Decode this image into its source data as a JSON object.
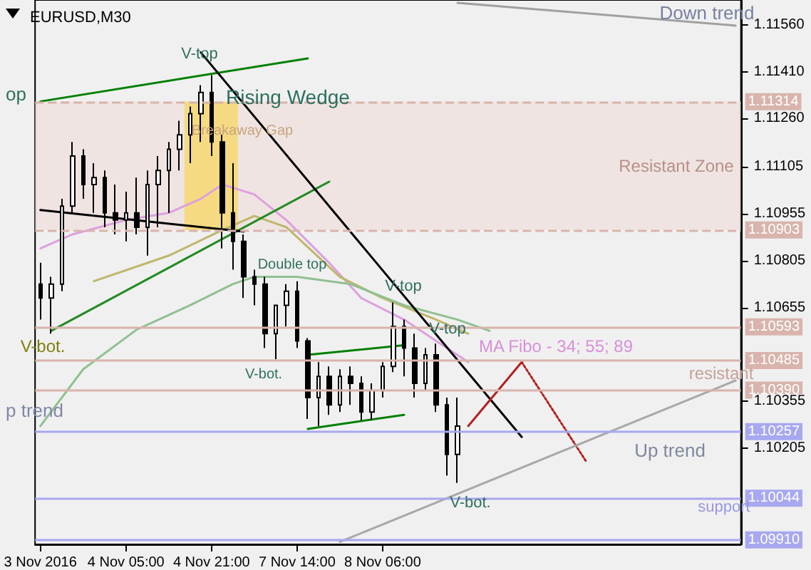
{
  "chart_data": {
    "type": "candlestick",
    "title": "EURUSD,M30",
    "categories": [
      "3 Nov 2016",
      null,
      null,
      null,
      null,
      null,
      null,
      null,
      "4 Nov 05:00",
      null,
      null,
      null,
      null,
      null,
      null,
      null,
      "4 Nov 21:00",
      null,
      null,
      null,
      null,
      null,
      null,
      null,
      "7 Nov 14:00",
      null,
      null,
      null,
      null,
      null,
      null,
      null,
      "8 Nov 06:00",
      null,
      null,
      null,
      null,
      null,
      null,
      null,
      null,
      null,
      null,
      null,
      null,
      null,
      null,
      null,
      null,
      null,
      null,
      null,
      null,
      null,
      null,
      null,
      null,
      null,
      null,
      null,
      null,
      null,
      null,
      null,
      null,
      null
    ],
    "ohlc": [
      [
        1.1073,
        1.10798,
        1.10616,
        1.10685
      ],
      [
        1.10685,
        1.10753,
        1.10571,
        1.1073
      ],
      [
        1.1073,
        1.11003,
        1.10707,
        1.1098
      ],
      [
        1.1098,
        1.11185,
        1.10958,
        1.1114
      ],
      [
        1.1114,
        1.11162,
        1.11003,
        1.11049
      ],
      [
        1.11049,
        1.11117,
        1.10958,
        1.11071
      ],
      [
        1.11071,
        1.11094,
        1.10912,
        1.10958
      ],
      [
        1.10958,
        1.11049,
        1.10889,
        1.10935
      ],
      [
        1.10935,
        1.11026,
        1.10867,
        1.10958
      ],
      [
        1.10958,
        1.11071,
        1.10889,
        1.10912
      ],
      [
        1.10912,
        1.11094,
        1.10821,
        1.11049
      ],
      [
        1.11049,
        1.1114,
        1.10912,
        1.11094
      ],
      [
        1.11094,
        1.11185,
        1.10958,
        1.11162
      ],
      [
        1.11162,
        1.11253,
        1.11094,
        1.11208
      ],
      [
        1.11208,
        1.11299,
        1.11117,
        1.11276
      ],
      [
        1.11276,
        1.11367,
        1.11185,
        1.11344
      ],
      [
        1.11344,
        1.11399,
        1.1114,
        1.11185
      ],
      [
        1.11185,
        1.11208,
        1.10844,
        1.10958
      ],
      [
        1.10958,
        1.11117,
        1.10776,
        1.10867
      ],
      [
        1.10867,
        1.10889,
        1.10685,
        1.10753
      ],
      [
        1.10753,
        1.10776,
        1.10662,
        1.1073
      ],
      [
        1.1073,
        1.10753,
        1.10525,
        1.10571
      ],
      [
        1.10571,
        1.10662,
        1.10489,
        1.10662
      ],
      [
        1.10662,
        1.1073,
        1.10594,
        1.10707
      ],
      [
        1.10707,
        1.10739,
        1.10525,
        1.10548
      ],
      [
        1.10548,
        1.10557,
        1.10298,
        1.10366
      ],
      [
        1.10366,
        1.1048,
        1.10275,
        1.10434
      ],
      [
        1.10434,
        1.10466,
        1.10311,
        1.10343
      ],
      [
        1.10343,
        1.10457,
        1.1032,
        1.10434
      ],
      [
        1.10434,
        1.10466,
        1.10343,
        1.10412
      ],
      [
        1.10412,
        1.10434,
        1.10293,
        1.1032
      ],
      [
        1.1032,
        1.10412,
        1.10293,
        1.10389
      ],
      [
        1.10389,
        1.1048,
        1.10366,
        1.10466
      ],
      [
        1.10466,
        1.10671,
        1.10448,
        1.10594
      ],
      [
        1.10594,
        1.10616,
        1.10434,
        1.10525
      ],
      [
        1.10525,
        1.10571,
        1.10366,
        1.10412
      ],
      [
        1.10412,
        1.10525,
        1.10389,
        1.10503
      ],
      [
        1.10503,
        1.10539,
        1.1032,
        1.10343
      ],
      [
        1.10343,
        1.10366,
        1.10116,
        1.10184
      ],
      [
        1.10184,
        1.10366,
        1.10093,
        1.10275
      ],
      null,
      null,
      null,
      null,
      null,
      null,
      null,
      null,
      null,
      null,
      null,
      null,
      null,
      null,
      null,
      null,
      null,
      null,
      null,
      null,
      null,
      null,
      null,
      null,
      null,
      null
    ],
    "color": "#000000",
    "series": [
      {
        "type": "line",
        "color": "#dda0dd",
        "values": [
          1.10844,
          null,
          null,
          1.10889,
          null,
          null,
          null,
          null,
          1.10935,
          null,
          null,
          null,
          1.10958,
          null,
          null,
          1.11003,
          null,
          1.11049,
          null,
          null,
          1.11017,
          null,
          null,
          1.10935,
          null,
          null,
          null,
          1.10798,
          null,
          null,
          1.10685,
          null,
          null,
          null,
          1.10616,
          null,
          null,
          1.10548,
          null,
          null,
          1.1048,
          null,
          null,
          null,
          null,
          null,
          null,
          null,
          null,
          null,
          null,
          null,
          null,
          null,
          null,
          null,
          null,
          null,
          null,
          null,
          null,
          null,
          null,
          null,
          null,
          null
        ]
      },
      {
        "type": "line",
        "color": "#bdb76b",
        "values": [
          null,
          null,
          null,
          null,
          null,
          1.10739,
          null,
          null,
          null,
          null,
          null,
          null,
          1.10821,
          null,
          null,
          null,
          null,
          1.10903,
          null,
          null,
          1.10948,
          null,
          null,
          1.10912,
          null,
          null,
          null,
          null,
          1.10753,
          null,
          null,
          null,
          1.10685,
          null,
          null,
          null,
          null,
          1.10616,
          null,
          null,
          1.10571,
          null,
          null,
          null,
          null,
          null,
          null,
          null,
          null,
          null,
          null,
          null,
          null,
          null,
          null,
          null,
          null,
          null,
          null,
          null,
          null,
          null,
          null,
          null,
          null,
          null
        ]
      },
      {
        "type": "line",
        "color": "#90c090",
        "values": [
          1.10275,
          null,
          null,
          null,
          1.10457,
          null,
          null,
          null,
          null,
          1.10584,
          null,
          null,
          null,
          null,
          1.10662,
          null,
          null,
          null,
          1.1073,
          null,
          1.10753,
          null,
          null,
          null,
          1.10753,
          null,
          null,
          null,
          null,
          1.1073,
          null,
          null,
          null,
          null,
          1.10662,
          null,
          null,
          null,
          null,
          1.10616,
          null,
          null,
          1.1058,
          null,
          null,
          null,
          null,
          null,
          null,
          null,
          null,
          null,
          null,
          null,
          null,
          null,
          null,
          null,
          null,
          null,
          null,
          null,
          null,
          null,
          null,
          null
        ]
      },
      {
        "type": "line",
        "color": "#008000",
        "values": [
          1.11315,
          null,
          null,
          null,
          null,
          null,
          null,
          null,
          null,
          null,
          null,
          null,
          null,
          null,
          null,
          null,
          null,
          null,
          null,
          null,
          null,
          null,
          null,
          null,
          null,
          1.11453,
          null,
          null,
          null,
          null,
          null,
          null,
          null,
          null,
          null,
          null,
          null,
          null,
          null,
          null,
          null,
          null,
          null,
          null,
          null,
          null,
          null,
          null,
          null,
          null,
          null,
          null,
          null,
          null,
          null,
          null,
          null,
          null,
          null,
          null,
          null,
          null,
          null,
          null,
          null,
          null
        ]
      },
      {
        "type": "line",
        "color": "#228b22",
        "values": [
          null,
          1.1058,
          null,
          null,
          null,
          null,
          null,
          null,
          null,
          null,
          null,
          null,
          null,
          null,
          null,
          null,
          null,
          null,
          null,
          null,
          null,
          null,
          null,
          null,
          null,
          null,
          null,
          1.11058,
          null,
          null,
          null,
          null,
          null,
          null,
          null,
          null,
          null,
          null,
          null,
          null,
          null,
          null,
          null,
          null,
          null,
          null,
          null,
          null,
          null,
          null,
          null,
          null,
          null,
          null,
          null,
          null,
          null,
          null,
          null,
          null,
          null,
          null,
          null,
          null,
          null,
          null
        ]
      },
      {
        "type": "line",
        "color": "#008000",
        "values": [
          null,
          null,
          null,
          null,
          null,
          null,
          null,
          null,
          null,
          null,
          null,
          null,
          null,
          null,
          null,
          null,
          null,
          null,
          null,
          null,
          null,
          null,
          null,
          null,
          null,
          1.10503,
          null,
          null,
          null,
          null,
          null,
          null,
          null,
          null,
          1.10534,
          null,
          null,
          null,
          null,
          null,
          null,
          null,
          null,
          null,
          null,
          null,
          null,
          null,
          null,
          null,
          null,
          null,
          null,
          null,
          null,
          null,
          null,
          null,
          null,
          null,
          null,
          null,
          null,
          null,
          null,
          null
        ]
      },
      {
        "type": "line",
        "color": "#008000",
        "values": [
          null,
          null,
          null,
          null,
          null,
          null,
          null,
          null,
          null,
          null,
          null,
          null,
          null,
          null,
          null,
          null,
          null,
          null,
          null,
          null,
          null,
          null,
          null,
          null,
          null,
          1.10266,
          null,
          null,
          null,
          null,
          null,
          null,
          null,
          null,
          1.10311,
          null,
          null,
          null,
          null,
          null,
          null,
          null,
          null,
          null,
          null,
          null,
          null,
          null,
          null,
          null,
          null,
          null,
          null,
          null,
          null,
          null,
          null,
          null,
          null,
          null,
          null,
          null,
          null,
          null,
          null,
          null
        ]
      },
      {
        "type": "line",
        "color": "#000000",
        "values": [
          null,
          null,
          null,
          null,
          null,
          null,
          null,
          null,
          null,
          null,
          null,
          null,
          null,
          null,
          null,
          1.11472,
          null,
          null,
          null,
          null,
          null,
          null,
          null,
          null,
          null,
          null,
          null,
          null,
          null,
          null,
          null,
          null,
          null,
          null,
          null,
          null,
          null,
          null,
          null,
          null,
          null,
          null,
          null,
          null,
          null,
          1.1024,
          null,
          null,
          null,
          null,
          null,
          null,
          null,
          null,
          null,
          null,
          null,
          null,
          null,
          null,
          null,
          null,
          null,
          null,
          null,
          null
        ]
      },
      {
        "type": "line",
        "color": "#000000",
        "values": [
          1.10967,
          null,
          null,
          null,
          null,
          null,
          null,
          null,
          null,
          null,
          null,
          null,
          null,
          null,
          null,
          null,
          null,
          null,
          null,
          1.10898,
          null,
          null,
          null,
          null,
          null,
          null,
          null,
          null,
          null,
          null,
          null,
          null,
          null,
          null,
          null,
          null,
          null,
          null,
          null,
          null,
          null,
          null,
          null,
          null,
          null,
          null,
          null,
          null,
          null,
          null,
          null,
          null,
          null,
          null,
          null,
          null,
          null,
          null,
          null,
          null,
          null,
          null,
          null,
          null,
          null,
          null
        ]
      },
      {
        "type": "line",
        "color": "#b22222",
        "values": [
          null,
          null,
          null,
          null,
          null,
          null,
          null,
          null,
          null,
          null,
          null,
          null,
          null,
          null,
          null,
          null,
          null,
          null,
          null,
          null,
          null,
          null,
          null,
          null,
          null,
          null,
          null,
          null,
          null,
          null,
          null,
          null,
          null,
          null,
          null,
          null,
          null,
          null,
          null,
          null,
          1.10275,
          null,
          null,
          null,
          null,
          1.1048,
          null,
          null,
          null,
          null,
          null,
          null,
          null,
          null,
          null,
          null,
          null,
          null,
          null,
          null,
          null,
          null,
          null,
          null,
          null,
          null
        ]
      },
      {
        "type": "line",
        "color": "#b22222",
        "line_style": "dotted",
        "values": [
          null,
          null,
          null,
          null,
          null,
          null,
          null,
          null,
          null,
          null,
          null,
          null,
          null,
          null,
          null,
          null,
          null,
          null,
          null,
          null,
          null,
          null,
          null,
          null,
          null,
          null,
          null,
          null,
          null,
          null,
          null,
          null,
          null,
          null,
          null,
          null,
          null,
          null,
          null,
          null,
          null,
          null,
          null,
          null,
          null,
          1.1048,
          null,
          null,
          null,
          null,
          null,
          1.10163,
          null,
          null,
          null,
          null,
          null,
          null,
          null,
          null,
          null,
          null,
          null,
          null,
          null,
          null
        ]
      },
      {
        "type": "line",
        "color": "#a0a0a0",
        "values": [
          null,
          null,
          null,
          null,
          null,
          null,
          null,
          null,
          null,
          null,
          null,
          null,
          null,
          null,
          null,
          null,
          null,
          null,
          null,
          null,
          null,
          null,
          null,
          null,
          null,
          null,
          null,
          null,
          null,
          null,
          null,
          null,
          null,
          null,
          null,
          null,
          null,
          null,
          null,
          1.11631,
          null,
          null,
          null,
          null,
          null,
          null,
          null,
          null,
          null,
          null,
          null,
          null,
          null,
          null,
          null,
          null,
          null,
          null,
          null,
          null,
          null,
          null,
          null,
          null,
          null,
          1.11558
        ]
      },
      {
        "type": "line",
        "color": "#a8a8a8",
        "values": [
          null,
          null,
          null,
          null,
          null,
          null,
          null,
          null,
          null,
          null,
          null,
          null,
          null,
          null,
          null,
          null,
          null,
          null,
          null,
          null,
          null,
          null,
          null,
          null,
          null,
          null,
          null,
          null,
          1.09904,
          null,
          null,
          null,
          null,
          null,
          null,
          null,
          null,
          null,
          null,
          null,
          null,
          null,
          null,
          null,
          null,
          null,
          null,
          null,
          null,
          null,
          null,
          null,
          null,
          null,
          null,
          null,
          null,
          null,
          null,
          null,
          null,
          null,
          null,
          null,
          null,
          1.10421
        ]
      }
    ],
    "line_style": "solid",
    "marker": "none",
    "bands": [
      {
        "axis": "y",
        "from": 1.10903,
        "to": 1.11314,
        "label": "Resistant Zone",
        "color": "#efdcd8"
      }
    ],
    "ref_lines": [
      {
        "axis": "y",
        "value": 1.11314,
        "label": "1.11314",
        "color": "#d8b4ac",
        "line_style": "dashed"
      },
      {
        "axis": "y",
        "value": 1.10903,
        "label": "1.10903",
        "color": "#d8b4ac",
        "line_style": "dashed"
      },
      {
        "axis": "y",
        "value": 1.10593,
        "label": "1.10593",
        "color": "#d8b4ac",
        "line_style": "solid"
      },
      {
        "axis": "y",
        "value": 1.10485,
        "label": "1.10485",
        "color": "#d8b4ac",
        "line_style": "solid"
      },
      {
        "axis": "y",
        "value": 1.1039,
        "label": "1.10390",
        "color": "#d8b4ac",
        "line_style": "solid"
      },
      {
        "axis": "y",
        "value": 1.10257,
        "label": "1.10257",
        "color": "#a8a8f0",
        "line_style": "solid"
      },
      {
        "axis": "y",
        "value": 1.10044,
        "label": "1.10044",
        "color": "#a8a8f0",
        "line_style": "solid"
      },
      {
        "axis": "y",
        "value": 1.0991,
        "label": "1.09910",
        "color": "#a8a8f0",
        "line_style": "solid"
      }
    ],
    "annotations": [
      "V-top",
      "Rising Wedge",
      "Breakaway Gap",
      "Double top",
      "V-top",
      "V-top",
      "MA Fibo - 34; 55; 89",
      "V-bot.",
      "V-bot.",
      "V-bot.",
      "Down trend",
      "Up trend",
      "p trend",
      "op",
      "resistant",
      "support"
    ],
    "ylim": [
      1.09896,
      1.1164
    ],
    "yticks": [
      1.10205,
      1.10355,
      1.10655,
      1.10805,
      1.10955,
      1.11105,
      {
        "value": 1.1126,
        "label": "1.11260"
      },
      {
        "value": 1.1141,
        "label": "1.11410"
      },
      {
        "value": 1.1156,
        "label": "1.11560"
      }
    ],
    "grid": false
  }
}
